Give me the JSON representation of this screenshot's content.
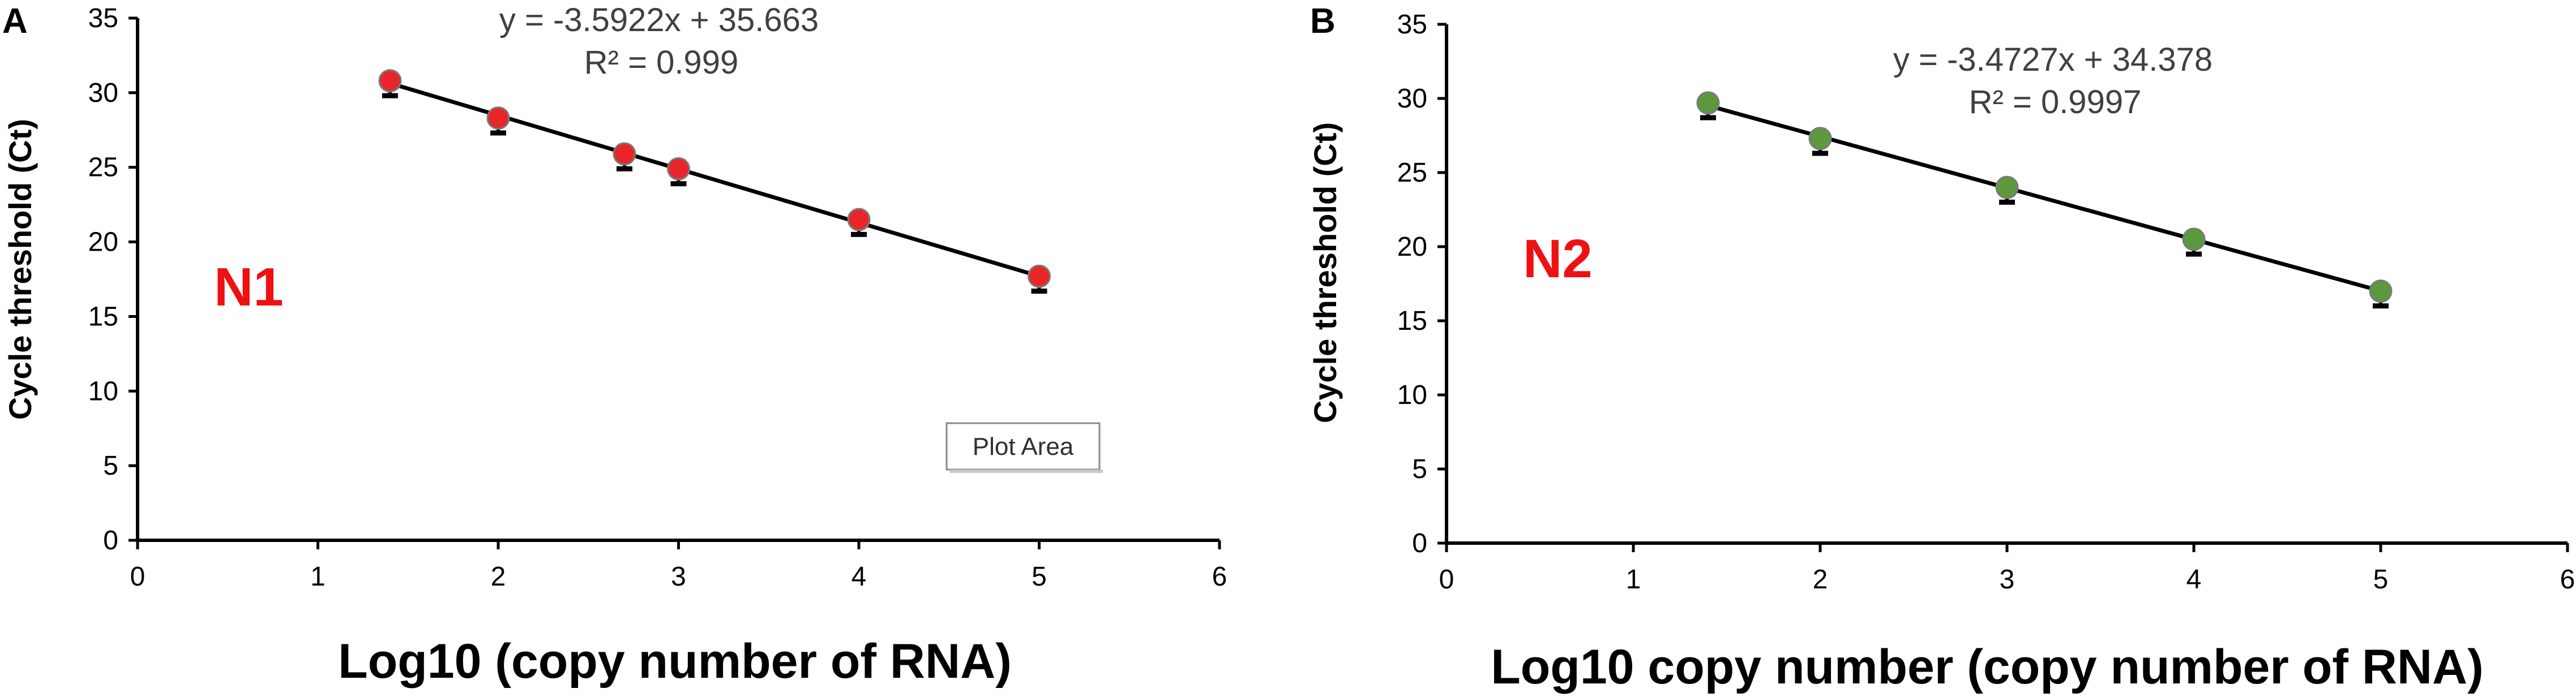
{
  "chart_data": [
    {
      "type": "scatter",
      "panel_label": "A",
      "series_label": "N1",
      "xlabel": "Log10 (copy number of RNA)",
      "ylabel": "Cycle threshold (Ct)",
      "xlim": [
        0,
        6
      ],
      "ylim": [
        0,
        35
      ],
      "xticks": [
        "0",
        "1",
        "2",
        "3",
        "4",
        "5",
        "6"
      ],
      "yticks": [
        "0",
        "5",
        "10",
        "15",
        "20",
        "25",
        "30",
        "35"
      ],
      "grid": false,
      "marker_color": "#e8262a",
      "points": [
        {
          "x": 1.4,
          "y": 30.8,
          "error": 1.0
        },
        {
          "x": 2.0,
          "y": 28.3,
          "error": 1.0
        },
        {
          "x": 2.7,
          "y": 25.9,
          "error": 1.0
        },
        {
          "x": 3.0,
          "y": 24.9,
          "error": 1.0
        },
        {
          "x": 4.0,
          "y": 21.5,
          "error": 1.0
        },
        {
          "x": 5.0,
          "y": 17.7,
          "error": 1.0
        }
      ],
      "trendline": {
        "slope": -3.5922,
        "intercept": 35.663,
        "x_range": [
          1.4,
          5.0
        ]
      },
      "equation": "y = -3.5922x + 35.663",
      "r_squared": "R² = 0.999",
      "tooltip": "Plot Area"
    },
    {
      "type": "scatter",
      "panel_label": "B",
      "series_label": "N2",
      "xlabel": "Log10 copy number (copy number of RNA)",
      "ylabel": "Cycle threshold (Ct)",
      "xlim": [
        0,
        6
      ],
      "ylim": [
        0,
        35
      ],
      "xticks": [
        "0",
        "1",
        "2",
        "3",
        "4",
        "5",
        "6"
      ],
      "yticks": [
        "0",
        "5",
        "10",
        "15",
        "20",
        "25",
        "30",
        "35"
      ],
      "grid": false,
      "marker_color": "#5a9a3c",
      "points": [
        {
          "x": 1.4,
          "y": 29.7,
          "error": 1.0
        },
        {
          "x": 2.0,
          "y": 27.3,
          "error": 1.0
        },
        {
          "x": 3.0,
          "y": 24.0,
          "error": 1.0
        },
        {
          "x": 4.0,
          "y": 20.5,
          "error": 1.0
        },
        {
          "x": 5.0,
          "y": 17.0,
          "error": 1.0
        }
      ],
      "trendline": {
        "slope": -3.4727,
        "intercept": 34.378,
        "x_range": [
          1.4,
          5.0
        ]
      },
      "equation": "y = -3.4727x + 34.378",
      "r_squared": "R² = 0.9997"
    }
  ]
}
